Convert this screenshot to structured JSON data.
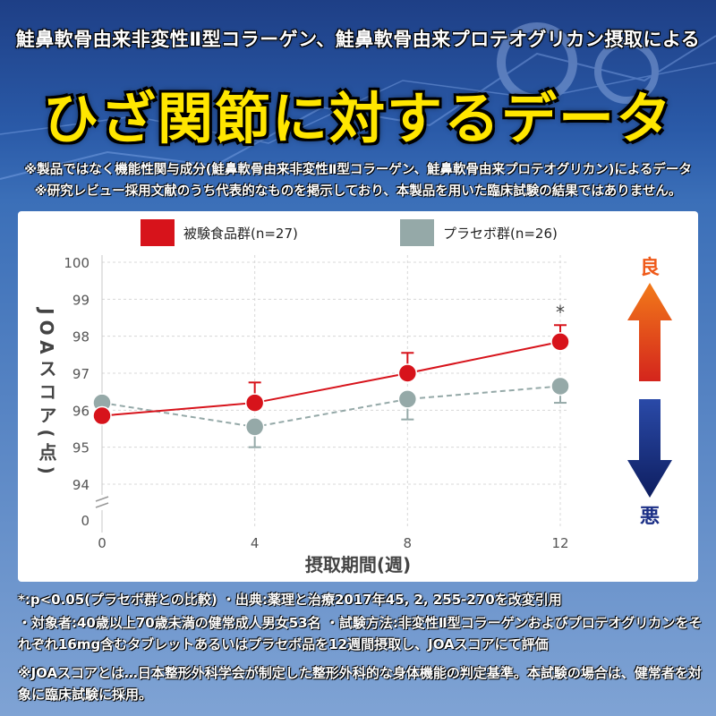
{
  "header": {
    "top_line": "鮭鼻軟骨由来非変性Ⅱ型コラーゲン、鮭鼻軟骨由来プロテオグリカン摂取による",
    "title": "ひざ関節に対するデータ",
    "note1": "※製品ではなく機能性関与成分(鮭鼻軟骨由来非変性Ⅱ型コラーゲン、鮭鼻軟骨由来プロテオグリカン)によるデータ",
    "note2": "※研究レビュー採用文献のうち代表的なものを掲示しており、本製品を用いた臨床試験の結果ではありません。"
  },
  "legend": {
    "test": "被験食品群(n=27)",
    "placebo": "プラセボ群(n=26)"
  },
  "arrows": {
    "good": "良",
    "bad": "悪"
  },
  "colors": {
    "test": "#d7131b",
    "placebo": "#95a9a8",
    "good_arrow": "#ef5a1a",
    "bad_arrow": "#1b2f86"
  },
  "chart_data": {
    "type": "line",
    "xlabel": "摂取期間(週)",
    "ylabel": "JOAスコア(点)",
    "x": [
      0,
      4,
      8,
      12
    ],
    "x_ticks": [
      "0",
      "4",
      "8",
      "12"
    ],
    "y_ticks": [
      "0",
      "94",
      "95",
      "96",
      "97",
      "98",
      "99",
      "100"
    ],
    "ylim": [
      94,
      100
    ],
    "axis_break": true,
    "grid": true,
    "series": [
      {
        "name": "被験食品群(n=27)",
        "values": [
          95.85,
          96.2,
          97.0,
          97.85
        ],
        "error": [
          0,
          0.55,
          0.55,
          0.45
        ],
        "error_dir": "up"
      },
      {
        "name": "プラセボ群(n=26)",
        "values": [
          96.2,
          95.55,
          96.3,
          96.65
        ],
        "error": [
          0,
          0.55,
          0.55,
          0.45
        ],
        "error_dir": "down"
      }
    ],
    "annotations": [
      {
        "x": 12,
        "text": "*"
      }
    ]
  },
  "footer": {
    "line1": "*:p<0.05(プラセボ群との比較) ・出典:薬理と治療2017年45, 2, 255-270を改変引用",
    "line2": "・対象者:40歳以上70歳未満の健常成人男女53名 ・試験方法:非変性Ⅱ型コラーゲンおよびプロテオグリカンをそれぞれ16mg含むタブレットあるいはプラセボ品を12週間摂取し、JOAスコアにて評価",
    "line3": "※JOAスコアとは…日本整形外科学会が制定した整形外科的な身体機能の判定基準。本試験の場合は、健常者を対象に臨床試験に採用。"
  }
}
